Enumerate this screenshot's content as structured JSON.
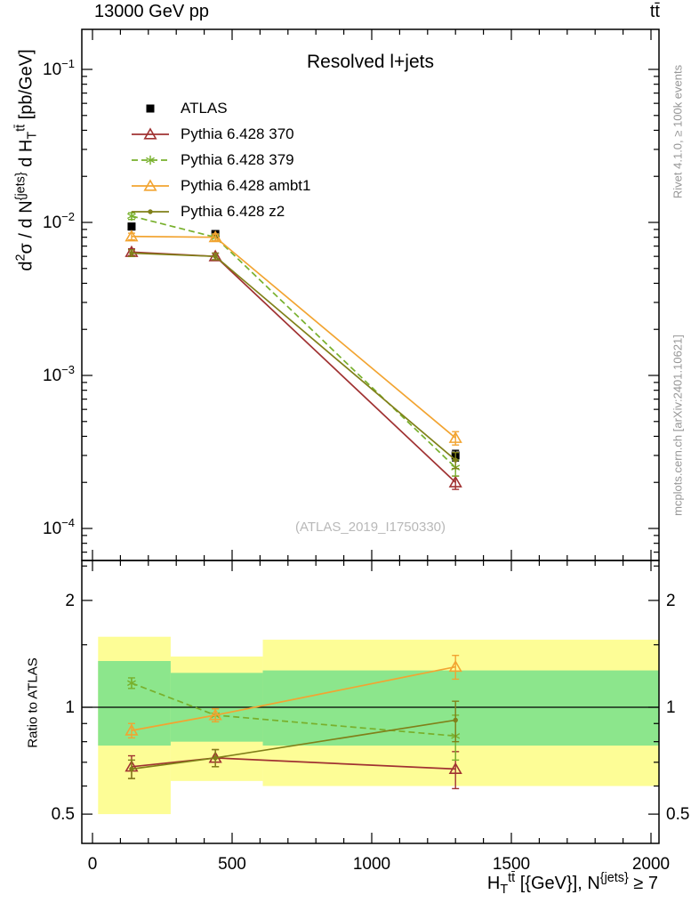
{
  "header": {
    "left": "13000 GeV pp",
    "right": "tt̄"
  },
  "side_notes": {
    "rivet": "Rivet 4.1.0, ≥ 100k events",
    "mcplots": "mcplots.cern.ch [arXiv:2401.10621]"
  },
  "axes": {
    "ylabel_parts": [
      {
        "t": "d"
      },
      {
        "t": "2",
        "style": "sup"
      },
      {
        "t": "σ / d N"
      },
      {
        "t": "{jets}",
        "style": "sup"
      },
      {
        "t": " d H"
      },
      {
        "t": "T",
        "style": "sub"
      },
      {
        "t": "tt̄",
        "style": "sup"
      },
      {
        "t": " [pb/GeV]"
      }
    ],
    "xlabel_parts": [
      {
        "t": "H"
      },
      {
        "t": "T",
        "style": "sub"
      },
      {
        "t": "tt̄",
        "style": "sup"
      },
      {
        "t": " [{GeV}], N"
      },
      {
        "t": "{jets}",
        "style": "sup"
      },
      {
        "t": " ≥ 7"
      }
    ],
    "ratio_ylabel": "Ratio to ATLAS"
  },
  "chart_data": {
    "type": "line",
    "title": "Resolved l+jets",
    "watermark": "(ATLAS_2019_I1750330)",
    "xlim": [
      0,
      2000
    ],
    "x_major_ticks": [
      0,
      500,
      1000,
      1500,
      2000
    ],
    "x_minor_step": 100,
    "ylim_main": [
      6.3e-05,
      0.183
    ],
    "y_main_decades": [
      -4,
      -3,
      -2,
      -1
    ],
    "ylim_ratio": [
      0.41,
      2.56
    ],
    "ratio_ticks": [
      0.5,
      1,
      2
    ],
    "ratio_minor_ticks": [
      0.6,
      0.7,
      0.8,
      0.9,
      1.5,
      2.5
    ],
    "x": [
      140,
      440,
      1300
    ],
    "series": [
      {
        "name": "ATLAS",
        "color": "#000000",
        "marker": "square",
        "line": "none",
        "values": [
          0.0094,
          0.0084,
          0.0003
        ],
        "yerr_rel": [
          0.05,
          0.05,
          0.08
        ]
      },
      {
        "name": "Pythia 6.428 370",
        "color": "#a03232",
        "marker": "triangle",
        "line": "solid",
        "values": [
          0.0064,
          0.006,
          0.0002
        ],
        "yerr_rel": [
          0.05,
          0.05,
          0.1
        ],
        "ratio": [
          0.68,
          0.72,
          0.67
        ],
        "ratio_err": [
          0.05,
          0.04,
          0.08
        ]
      },
      {
        "name": "Pythia 6.428 379",
        "color": "#78b02c",
        "marker": "star",
        "line": "dashed",
        "values": [
          0.011,
          0.008,
          0.00025
        ],
        "yerr_rel": [
          0.05,
          0.05,
          0.12
        ],
        "ratio": [
          1.17,
          0.95,
          0.83
        ],
        "ratio_err": [
          0.04,
          0.04,
          0.12
        ]
      },
      {
        "name": "Pythia 6.428 ambt1",
        "color": "#f2a431",
        "marker": "triangle",
        "line": "solid",
        "values": [
          0.0081,
          0.008,
          0.00039
        ],
        "yerr_rel": [
          0.05,
          0.05,
          0.1
        ],
        "ratio": [
          0.86,
          0.95,
          1.3
        ],
        "ratio_err": [
          0.04,
          0.04,
          0.1
        ]
      },
      {
        "name": "Pythia 6.428 z2",
        "color": "#808019",
        "marker": "dot",
        "line": "solid",
        "values": [
          0.0063,
          0.006,
          0.00028
        ],
        "yerr_rel": [
          0.05,
          0.05,
          0.12
        ],
        "ratio": [
          0.67,
          0.72,
          0.92
        ],
        "ratio_err": [
          0.04,
          0.04,
          0.12
        ]
      }
    ],
    "bands": {
      "edges": [
        20,
        280,
        610,
        2000
      ],
      "yellow": [
        [
          0.5,
          1.58
        ],
        [
          0.62,
          1.39
        ],
        [
          0.6,
          1.55
        ]
      ],
      "green": [
        [
          0.78,
          1.35
        ],
        [
          0.8,
          1.25
        ],
        [
          0.78,
          1.27
        ]
      ]
    },
    "colors": {
      "band_yellow": "#fdfd96",
      "band_green": "#8ce68c",
      "reference_line": "#000000"
    }
  }
}
